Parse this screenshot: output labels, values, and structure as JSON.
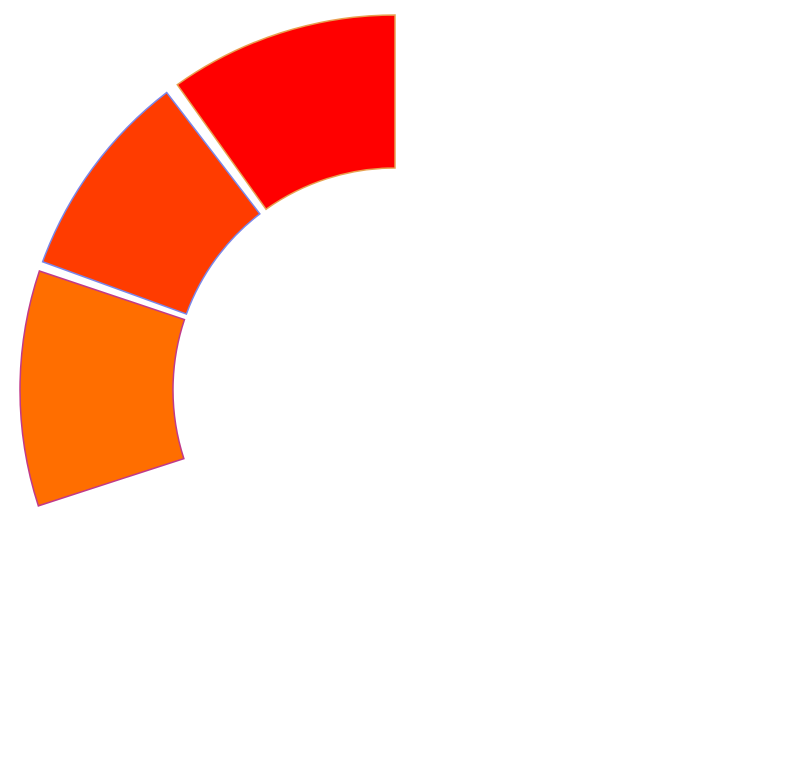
{
  "diagram": {
    "type": "segmented-arc",
    "segments": [
      {
        "fill": "#ff0000",
        "stroke": "#e8a050"
      },
      {
        "fill": "#ff3c00",
        "stroke": "#7a86e8"
      },
      {
        "fill": "#ff6e00",
        "stroke": "#c03a8a"
      }
    ]
  }
}
